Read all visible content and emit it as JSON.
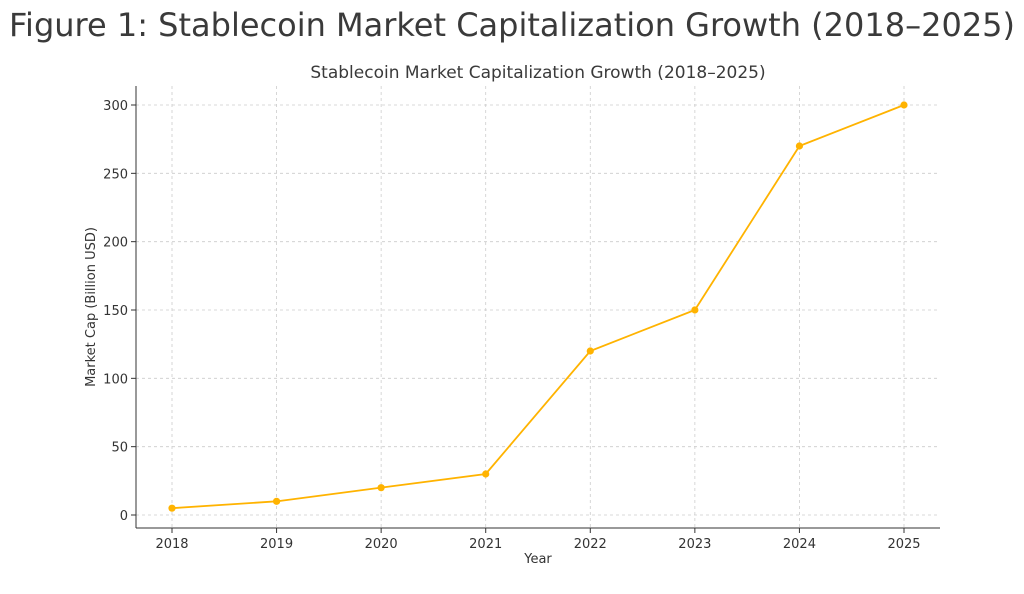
{
  "figure_title": "Figure 1: Stablecoin Market Capitalization Growth (2018–2025)",
  "chart_data": {
    "type": "line",
    "title": "Stablecoin Market Capitalization Growth (2018–2025)",
    "xlabel": "Year",
    "ylabel": "Market Cap (Billion USD)",
    "x": [
      "2018",
      "2019",
      "2020",
      "2021",
      "2022",
      "2023",
      "2024",
      "2025"
    ],
    "series": [
      {
        "values": [
          5,
          10,
          20,
          30,
          120,
          150,
          270,
          300
        ],
        "color": "#FFB300"
      }
    ],
    "yticks": [
      0,
      50,
      100,
      150,
      200,
      250,
      300
    ],
    "ylim": [
      -8,
      315
    ],
    "grid": true,
    "grid_style": "dashed",
    "marker": "circle"
  }
}
